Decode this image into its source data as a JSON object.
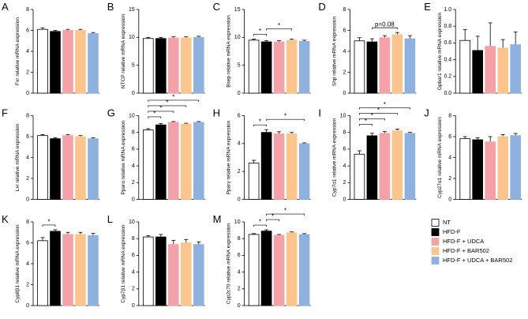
{
  "legend": [
    {
      "name": "NT",
      "color": "#ffffff"
    },
    {
      "name": "HFD-F",
      "color": "#000000"
    },
    {
      "name": "HFD-F + UDCA",
      "color": "#f4a1a7"
    },
    {
      "name": "HFD-F + BAR502",
      "color": "#fbc58d"
    },
    {
      "name": "HFD-F + UDCA + BAR502",
      "color": "#8fb1de"
    }
  ],
  "chart_data": [
    {
      "type": "bar",
      "panel": "A",
      "ylabel": "Fxr relative mRNA expression",
      "values": [
        6.1,
        5.9,
        6.0,
        6.0,
        5.7
      ],
      "errors": [
        0.15,
        0.1,
        0.1,
        0.1,
        0.1
      ],
      "ylim": [
        0,
        8
      ],
      "yticks": [
        0,
        2,
        4,
        6,
        8
      ],
      "annotations": []
    },
    {
      "type": "bar",
      "panel": "B",
      "ylabel": "NTCP relative mRNA expression",
      "values": [
        9.8,
        9.8,
        9.9,
        9.9,
        10.0
      ],
      "errors": [
        0.2,
        0.2,
        0.2,
        0.2,
        0.2
      ],
      "ylim": [
        0,
        15
      ],
      "yticks": [
        0,
        5,
        10,
        15
      ],
      "annotations": []
    },
    {
      "type": "bar",
      "panel": "C",
      "ylabel": "Bsep relative mRNA expression",
      "values": [
        9.5,
        9.2,
        9.2,
        9.5,
        9.3
      ],
      "errors": [
        0.2,
        0.2,
        0.2,
        0.2,
        0.2
      ],
      "ylim": [
        0,
        15
      ],
      "yticks": [
        0,
        5,
        10,
        15
      ],
      "annotations": [
        {
          "from": 0,
          "to": 1,
          "label": "*"
        },
        {
          "from": 1,
          "to": 3,
          "label": "*"
        }
      ]
    },
    {
      "type": "bar",
      "panel": "D",
      "ylabel": "Shp relative mRNA expression",
      "values": [
        5.0,
        4.9,
        5.3,
        5.6,
        5.2
      ],
      "errors": [
        0.3,
        0.3,
        0.2,
        0.2,
        0.3
      ],
      "ylim": [
        0,
        8
      ],
      "yticks": [
        0,
        2,
        4,
        6,
        8
      ],
      "annotations": [
        {
          "from": 1,
          "to": 3,
          "label": "p=0.08"
        }
      ]
    },
    {
      "type": "bar",
      "panel": "E",
      "ylabel": "Gpbar1 relative mRNA expression",
      "values": [
        0.63,
        0.51,
        0.56,
        0.54,
        0.58
      ],
      "errors": [
        0.13,
        0.17,
        0.28,
        0.1,
        0.15
      ],
      "ylim": [
        0,
        1
      ],
      "yticks": [
        {
          "value": 0,
          "label": "0.0"
        },
        0.2,
        0.4,
        0.6,
        0.8,
        {
          "value": 1,
          "label": "1.0"
        }
      ],
      "annotations": []
    },
    {
      "type": "bar",
      "panel": "F",
      "ylabel": "Lxr relative mRNA expression",
      "values": [
        6.1,
        5.8,
        6.1,
        6.0,
        5.8
      ],
      "errors": [
        0.1,
        0.1,
        0.1,
        0.1,
        0.1
      ],
      "ylim": [
        0,
        8
      ],
      "yticks": [
        0,
        2,
        4,
        6,
        8
      ],
      "annotations": []
    },
    {
      "type": "bar",
      "panel": "G",
      "ylabel": "Pparα relative mRNA expression",
      "values": [
        8.3,
        8.9,
        9.2,
        9.0,
        9.2
      ],
      "errors": [
        0.15,
        0.15,
        0.1,
        0.1,
        0.1
      ],
      "ylim": [
        0,
        10
      ],
      "yticks": [
        0,
        2,
        4,
        6,
        8,
        10
      ],
      "annotations": [
        {
          "from": 0,
          "to": 1,
          "label": "*"
        },
        {
          "from": 0,
          "to": 2,
          "label": "*"
        },
        {
          "from": 0,
          "to": 3,
          "label": "*"
        },
        {
          "from": 0,
          "to": 4,
          "label": "*"
        }
      ]
    },
    {
      "type": "bar",
      "panel": "H",
      "ylabel": "Pparγ relative mRNA expression",
      "values": [
        2.6,
        4.8,
        4.7,
        4.7,
        4.0
      ],
      "errors": [
        0.2,
        0.2,
        0.15,
        0.1,
        0.05
      ],
      "ylim": [
        0,
        6
      ],
      "yticks": [
        0,
        2,
        4,
        6
      ],
      "annotations": [
        {
          "from": 0,
          "to": 1,
          "label": "*"
        },
        {
          "from": 1,
          "to": 4,
          "label": "*"
        }
      ]
    },
    {
      "type": "bar",
      "panel": "I",
      "ylabel": "Cyp7α1 relative mRNA expression",
      "values": [
        5.4,
        7.6,
        7.9,
        8.2,
        7.9
      ],
      "errors": [
        0.4,
        0.3,
        0.2,
        0.2,
        0.1
      ],
      "ylim": [
        0,
        10
      ],
      "yticks": [
        0,
        2,
        4,
        6,
        8,
        10
      ],
      "annotations": [
        {
          "from": 0,
          "to": 1,
          "label": "*"
        },
        {
          "from": 0,
          "to": 2,
          "label": "*"
        },
        {
          "from": 0,
          "to": 3,
          "label": "*"
        },
        {
          "from": 0,
          "to": 4,
          "label": "*"
        }
      ]
    },
    {
      "type": "bar",
      "panel": "J",
      "ylabel": "Cyp27α1 relative mRNA expression",
      "values": [
        5.8,
        5.7,
        5.5,
        6.0,
        6.1
      ],
      "errors": [
        0.2,
        0.2,
        0.5,
        0.2,
        0.2
      ],
      "ylim": [
        0,
        8
      ],
      "yticks": [
        0,
        2,
        4,
        6,
        8
      ],
      "annotations": []
    },
    {
      "type": "bar",
      "panel": "K",
      "ylabel": "Cyp8β1 relative mRNA expression",
      "values": [
        6.2,
        7.1,
        6.8,
        6.8,
        6.7
      ],
      "errors": [
        0.3,
        0.15,
        0.2,
        0.2,
        0.2
      ],
      "ylim": [
        0,
        8
      ],
      "yticks": [
        0,
        2,
        4,
        6,
        8
      ],
      "annotations": [
        {
          "from": 0,
          "to": 1,
          "label": "*"
        }
      ]
    },
    {
      "type": "bar",
      "panel": "L",
      "ylabel": "Cyp7β1 relative mRNA expression",
      "values": [
        8.2,
        8.2,
        7.3,
        7.5,
        7.3
      ],
      "errors": [
        0.15,
        0.3,
        0.5,
        0.4,
        0.3
      ],
      "ylim": [
        0,
        10
      ],
      "yticks": [
        0,
        2,
        4,
        6,
        8,
        10
      ],
      "annotations": []
    },
    {
      "type": "bar",
      "panel": "M",
      "ylabel": "Cyp2c70 relative mRNA expression",
      "values": [
        8.5,
        8.9,
        8.4,
        8.7,
        8.5
      ],
      "errors": [
        0.1,
        0.15,
        0.1,
        0.1,
        0.1
      ],
      "ylim": [
        0,
        10
      ],
      "yticks": [
        0,
        2,
        4,
        6,
        8,
        10
      ],
      "annotations": [
        {
          "from": 0,
          "to": 1,
          "label": "*"
        },
        {
          "from": 1,
          "to": 2,
          "label": "*"
        },
        {
          "from": 1,
          "to": 4,
          "label": "*"
        }
      ]
    }
  ]
}
